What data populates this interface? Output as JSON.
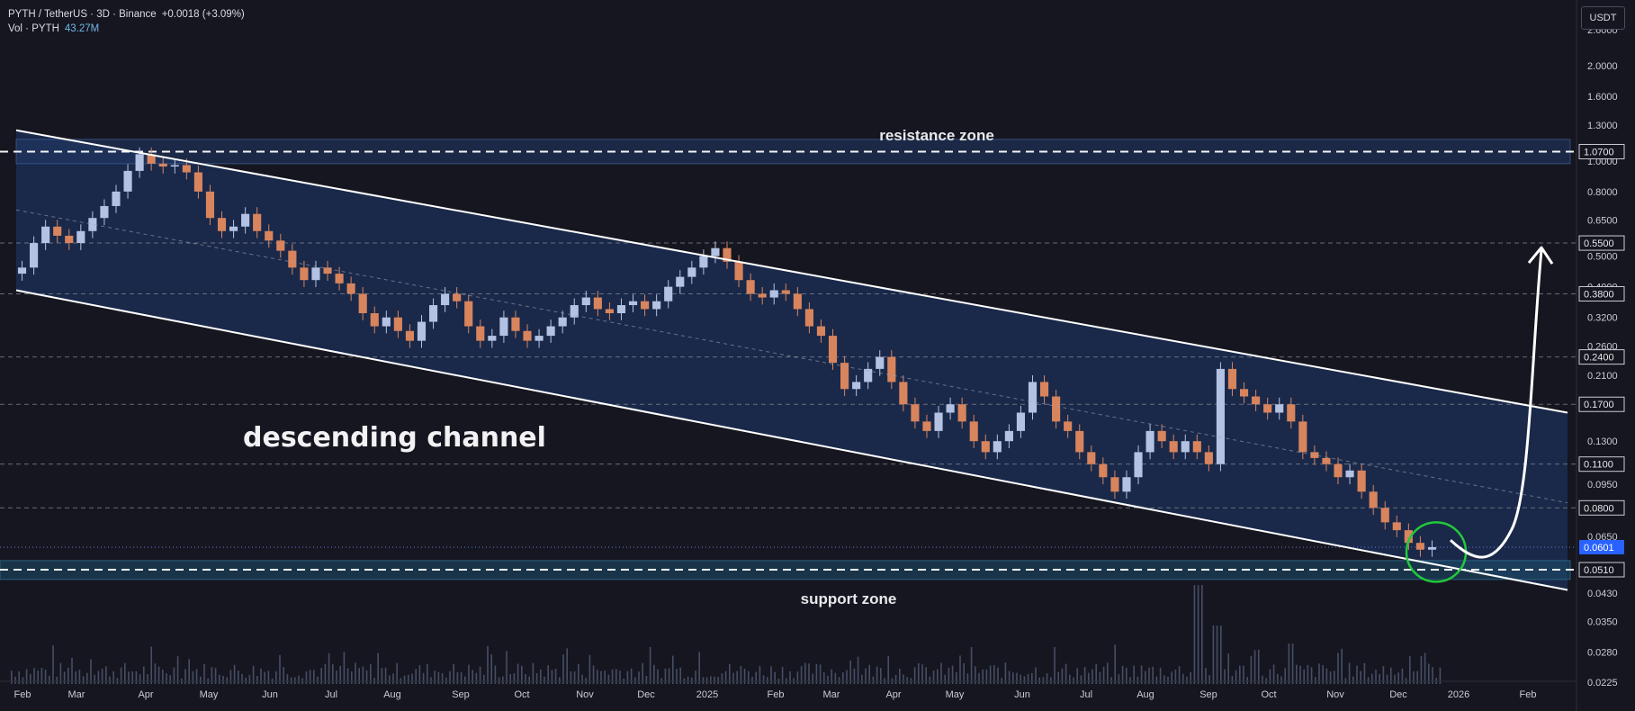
{
  "header": {
    "symbol_line": "PYTH / TetherUS · 3D · Binance",
    "change": "+0.0018 (+3.09%)",
    "volume_label": "Vol · PYTH",
    "volume_value": "43.27M"
  },
  "currency_button": "USDT",
  "colors": {
    "background": "#161620",
    "channel_fill": "#1c2f56",
    "support_band": "#1d4a66",
    "up_candle": "#b3c2e2",
    "down_candle": "#d8845d",
    "annotation": "#ffffff",
    "highlight_circle": "#22c93a",
    "price_badge": "#2962ff"
  },
  "chart_data": {
    "type": "candlestick",
    "title": "PYTH / TetherUS · 3D · Binance",
    "scale": "log",
    "y_ticks": [
      2.6,
      2.0,
      1.6,
      1.3,
      1.0,
      0.8,
      0.65,
      0.5,
      0.4,
      0.32,
      0.26,
      0.21,
      0.13,
      0.095,
      0.065,
      0.043,
      0.035,
      0.028,
      0.0225
    ],
    "y_tick_labels": [
      "2.6000",
      "2.0000",
      "1.6000",
      "1.3000",
      "1.0000",
      "0.8000",
      "0.6500",
      "0.5000",
      "0.4000",
      "0.3200",
      "0.2600",
      "0.2100",
      "0.1300",
      "0.0950",
      "0.0650",
      "0.0430",
      "0.0350",
      "0.0280",
      "0.0225"
    ],
    "x_labels": [
      "Feb",
      "Mar",
      "Apr",
      "May",
      "Jun",
      "Jul",
      "Aug",
      "Sep",
      "Oct",
      "Nov",
      "Dec",
      "2025",
      "Feb",
      "Mar",
      "Apr",
      "May",
      "Jun",
      "Jul",
      "Aug",
      "Sep",
      "Oct",
      "Nov",
      "Dec",
      "2026",
      "Feb"
    ],
    "level_lines": [
      {
        "price": 1.07,
        "label": "1.0700",
        "style": "dashed-bold"
      },
      {
        "price": 0.55,
        "label": "0.5500",
        "style": "dashed"
      },
      {
        "price": 0.38,
        "label": "0.3800",
        "style": "dashed"
      },
      {
        "price": 0.24,
        "label": "0.2400",
        "style": "dashed"
      },
      {
        "price": 0.17,
        "label": "0.1700",
        "style": "dashed"
      },
      {
        "price": 0.11,
        "label": "0.1100",
        "style": "dashed"
      },
      {
        "price": 0.08,
        "label": "0.0800",
        "style": "dashed"
      },
      {
        "price": 0.051,
        "label": "0.0510",
        "style": "dashed-bold"
      }
    ],
    "current_price": {
      "value": 0.0601,
      "label": "0.0601"
    },
    "resistance_zone": {
      "low": 0.98,
      "high": 1.17,
      "label": "resistance zone"
    },
    "support_zone": {
      "low": 0.0475,
      "high": 0.0545,
      "label": "support zone"
    },
    "channel": {
      "label": "descending channel",
      "upper": {
        "from": [
          "Feb 2024",
          1.25
        ],
        "to": [
          "Feb 2026",
          0.16
        ]
      },
      "lower": {
        "from": [
          "Feb 2024",
          0.39
        ],
        "to": [
          "Feb 2026",
          0.044
        ]
      },
      "mid": {
        "from": [
          "Feb 2024",
          0.7
        ],
        "to": [
          "Feb 2026",
          0.083
        ]
      }
    },
    "projection": {
      "from": 0.06,
      "to": 0.55
    },
    "price_path": [
      [
        0.44,
        0.46
      ],
      [
        0.46,
        0.55
      ],
      [
        0.55,
        0.62
      ],
      [
        0.62,
        0.58
      ],
      [
        0.58,
        0.55
      ],
      [
        0.55,
        0.6
      ],
      [
        0.6,
        0.66
      ],
      [
        0.66,
        0.72
      ],
      [
        0.72,
        0.8
      ],
      [
        0.8,
        0.93
      ],
      [
        0.93,
        1.05
      ],
      [
        1.05,
        0.98
      ],
      [
        0.98,
        0.96
      ],
      [
        0.96,
        0.97
      ],
      [
        0.97,
        0.92
      ],
      [
        0.92,
        0.8
      ],
      [
        0.8,
        0.66
      ],
      [
        0.66,
        0.6
      ],
      [
        0.6,
        0.62
      ],
      [
        0.62,
        0.68
      ],
      [
        0.68,
        0.6
      ],
      [
        0.6,
        0.56
      ],
      [
        0.56,
        0.52
      ],
      [
        0.52,
        0.46
      ],
      [
        0.46,
        0.42
      ],
      [
        0.42,
        0.46
      ],
      [
        0.46,
        0.44
      ],
      [
        0.44,
        0.41
      ],
      [
        0.41,
        0.38
      ],
      [
        0.38,
        0.33
      ],
      [
        0.33,
        0.3
      ],
      [
        0.3,
        0.32
      ],
      [
        0.32,
        0.29
      ],
      [
        0.29,
        0.27
      ],
      [
        0.27,
        0.31
      ],
      [
        0.31,
        0.35
      ],
      [
        0.35,
        0.38
      ],
      [
        0.38,
        0.36
      ],
      [
        0.36,
        0.3
      ],
      [
        0.3,
        0.27
      ],
      [
        0.27,
        0.28
      ],
      [
        0.28,
        0.32
      ],
      [
        0.32,
        0.29
      ],
      [
        0.29,
        0.27
      ],
      [
        0.27,
        0.28
      ],
      [
        0.28,
        0.3
      ],
      [
        0.3,
        0.32
      ],
      [
        0.32,
        0.35
      ],
      [
        0.35,
        0.37
      ],
      [
        0.37,
        0.34
      ],
      [
        0.34,
        0.33
      ],
      [
        0.33,
        0.35
      ],
      [
        0.35,
        0.36
      ],
      [
        0.36,
        0.34
      ],
      [
        0.34,
        0.36
      ],
      [
        0.36,
        0.4
      ],
      [
        0.4,
        0.43
      ],
      [
        0.43,
        0.46
      ],
      [
        0.46,
        0.5
      ],
      [
        0.5,
        0.53
      ],
      [
        0.53,
        0.48
      ],
      [
        0.48,
        0.42
      ],
      [
        0.42,
        0.38
      ],
      [
        0.38,
        0.37
      ],
      [
        0.37,
        0.39
      ],
      [
        0.39,
        0.38
      ],
      [
        0.38,
        0.34
      ],
      [
        0.34,
        0.3
      ],
      [
        0.3,
        0.28
      ],
      [
        0.28,
        0.23
      ],
      [
        0.23,
        0.19
      ],
      [
        0.19,
        0.2
      ],
      [
        0.2,
        0.22
      ],
      [
        0.22,
        0.24
      ],
      [
        0.24,
        0.2
      ],
      [
        0.2,
        0.17
      ],
      [
        0.17,
        0.15
      ],
      [
        0.15,
        0.14
      ],
      [
        0.14,
        0.16
      ],
      [
        0.16,
        0.17
      ],
      [
        0.17,
        0.15
      ],
      [
        0.15,
        0.13
      ],
      [
        0.13,
        0.12
      ],
      [
        0.12,
        0.13
      ],
      [
        0.13,
        0.14
      ],
      [
        0.14,
        0.16
      ],
      [
        0.16,
        0.2
      ],
      [
        0.2,
        0.18
      ],
      [
        0.18,
        0.15
      ],
      [
        0.15,
        0.14
      ],
      [
        0.14,
        0.12
      ],
      [
        0.12,
        0.11
      ],
      [
        0.11,
        0.1
      ],
      [
        0.1,
        0.09
      ],
      [
        0.09,
        0.1
      ],
      [
        0.1,
        0.12
      ],
      [
        0.12,
        0.14
      ],
      [
        0.14,
        0.13
      ],
      [
        0.13,
        0.12
      ],
      [
        0.12,
        0.13
      ],
      [
        0.13,
        0.12
      ],
      [
        0.12,
        0.11
      ],
      [
        0.11,
        0.22
      ],
      [
        0.22,
        0.19
      ],
      [
        0.19,
        0.18
      ],
      [
        0.18,
        0.17
      ],
      [
        0.17,
        0.16
      ],
      [
        0.16,
        0.17
      ],
      [
        0.17,
        0.15
      ],
      [
        0.15,
        0.12
      ],
      [
        0.12,
        0.115
      ],
      [
        0.115,
        0.11
      ],
      [
        0.11,
        0.1
      ],
      [
        0.1,
        0.105
      ],
      [
        0.105,
        0.09
      ],
      [
        0.09,
        0.08
      ],
      [
        0.08,
        0.072
      ],
      [
        0.072,
        0.068
      ],
      [
        0.068,
        0.062
      ],
      [
        0.062,
        0.059
      ],
      [
        0.059,
        0.0601
      ]
    ]
  }
}
